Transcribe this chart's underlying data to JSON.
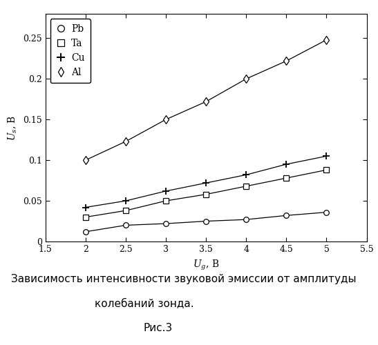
{
  "x": [
    2.0,
    2.5,
    3.0,
    3.5,
    4.0,
    4.5,
    5.0
  ],
  "Pb": [
    0.012,
    0.02,
    0.022,
    0.025,
    0.027,
    0.032,
    0.036
  ],
  "Ta": [
    0.03,
    0.038,
    0.05,
    0.058,
    0.068,
    0.078,
    0.088
  ],
  "Cu": [
    0.042,
    0.05,
    0.062,
    0.072,
    0.082,
    0.095,
    0.105
  ],
  "Al": [
    0.1,
    0.123,
    0.15,
    0.172,
    0.2,
    0.222,
    0.248
  ],
  "xlim": [
    1.5,
    5.5
  ],
  "ylim": [
    0,
    0.28
  ],
  "xticks": [
    1.5,
    2.0,
    2.5,
    3.0,
    3.5,
    4.0,
    4.5,
    5.0,
    5.5
  ],
  "yticks": [
    0,
    0.05,
    0.1,
    0.15,
    0.2,
    0.25
  ],
  "xlabel": "$U_g$, В",
  "ylabel": "$U_s$, В",
  "line_color": "#000000",
  "bg_color": "#ffffff",
  "caption_line1": "Зависимость интенсивности звуковой эмиссии от амплитуды",
  "caption_line2": "колебаний зонда.",
  "caption_line3": "Рис.3",
  "axis_fontsize": 10,
  "tick_fontsize": 9,
  "legend_fontsize": 10,
  "caption_fontsize": 11
}
